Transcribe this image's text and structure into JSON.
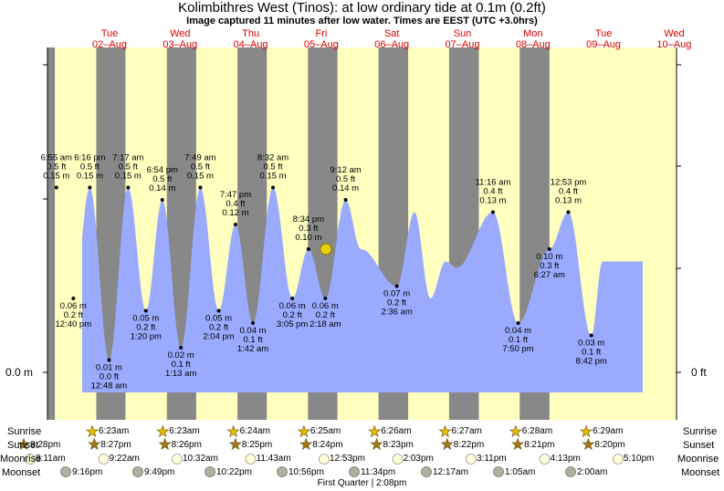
{
  "header": {
    "title": "Kolimbithres West (Tinos): at low  ordinary tide at 0.1m (0.2ft)",
    "subtitle": "Image captured 11 minutes after low water. Times are EEST (UTC +3.0hrs)"
  },
  "colors": {
    "day": "#ffffc0",
    "night": "#888888",
    "water": "#9aaaff",
    "dayname": "#e00000"
  },
  "chart_data": {
    "type": "area",
    "title": "Kolimbithres West (Tinos): at low  ordinary tide at 0.1m (0.2ft)",
    "x_unit": "hours from 2-Aug 00:00 EEST",
    "xlim": [
      -12.2,
      192.5
    ],
    "ylim_m": [
      -0.055,
      0.228
    ],
    "y_ticks_left": [
      {
        "value": 0.0,
        "label": "0.0 m"
      }
    ],
    "y_ticks_right": [
      {
        "value": 0.0,
        "label": "0 ft"
      }
    ],
    "days": [
      {
        "name": "Tue",
        "date": "02–Aug"
      },
      {
        "name": "Wed",
        "date": "03–Aug"
      },
      {
        "name": "Thu",
        "date": "04–Aug"
      },
      {
        "name": "Fri",
        "date": "05–Aug"
      },
      {
        "name": "Sat",
        "date": "06–Aug"
      },
      {
        "name": "Sun",
        "date": "07–Aug"
      },
      {
        "name": "Mon",
        "date": "08–Aug"
      },
      {
        "name": "Tue",
        "date": "09–Aug"
      },
      {
        "name": "Wed",
        "date": "10–Aug"
      }
    ],
    "tides": [
      {
        "t": 6.92,
        "m": 0.15,
        "labels": [
          "6:55 am",
          "0.5 ft",
          "0.15 m"
        ],
        "pos": "above"
      },
      {
        "t": 12.67,
        "m": 0.06,
        "labels": [
          "0.06 m",
          "0.2 ft",
          "12:40 pm"
        ],
        "pos": "below"
      },
      {
        "t": 18.27,
        "m": 0.15,
        "labels": [
          "6:16 pm",
          "0.5 ft",
          "0.15 m"
        ],
        "pos": "above"
      },
      {
        "t": 24.8,
        "m": 0.01,
        "labels": [
          "0.01 m",
          "0.0 ft",
          "12:48 am"
        ],
        "pos": "below"
      },
      {
        "t": 31.28,
        "m": 0.15,
        "labels": [
          "7:17 am",
          "0.5 ft",
          "0.15 m"
        ],
        "pos": "above"
      },
      {
        "t": 37.33,
        "m": 0.05,
        "labels": [
          "0.05 m",
          "0.2 ft",
          "1:20 pm"
        ],
        "pos": "below"
      },
      {
        "t": 42.9,
        "m": 0.14,
        "labels": [
          "6:54 pm",
          "0.5 ft",
          "0.14 m"
        ],
        "pos": "above"
      },
      {
        "t": 49.22,
        "m": 0.02,
        "labels": [
          "0.02 m",
          "0.1 ft",
          "1:13 am"
        ],
        "pos": "below"
      },
      {
        "t": 55.82,
        "m": 0.15,
        "labels": [
          "7:49 am",
          "0.5 ft",
          "0.15 m"
        ],
        "pos": "above"
      },
      {
        "t": 62.07,
        "m": 0.05,
        "labels": [
          "0.05 m",
          "0.2 ft",
          "2:04 pm"
        ],
        "pos": "below"
      },
      {
        "t": 67.78,
        "m": 0.12,
        "labels": [
          "7:47 pm",
          "0.4 ft",
          "0.12 m"
        ],
        "pos": "above"
      },
      {
        "t": 73.7,
        "m": 0.04,
        "labels": [
          "0.04 m",
          "0.1 ft",
          "1:42 am"
        ],
        "pos": "below"
      },
      {
        "t": 80.53,
        "m": 0.15,
        "labels": [
          "8:32 am",
          "0.5 ft",
          "0.15 m"
        ],
        "pos": "above"
      },
      {
        "t": 87.08,
        "m": 0.06,
        "labels": [
          "0.06 m",
          "0.2 ft",
          "3:05 pm"
        ],
        "pos": "below"
      },
      {
        "t": 92.57,
        "m": 0.1,
        "labels": [
          "8:34 pm",
          "0.3 ft",
          "0.10 m"
        ],
        "pos": "above"
      },
      {
        "t": 98.3,
        "m": 0.06,
        "labels": [
          "0.06 m",
          "0.2 ft",
          "2:18 am"
        ],
        "pos": "below"
      },
      {
        "t": 105.2,
        "m": 0.14,
        "labels": [
          "9:12 am",
          "0.5 ft",
          "0.14 m"
        ],
        "pos": "above"
      },
      {
        "t": 110.4,
        "m": 0.1,
        "labels": [],
        "pos": "none"
      },
      {
        "t": 122.6,
        "m": 0.07,
        "labels": [
          "0.07 m",
          "0.2 ft",
          "2:36 am"
        ],
        "pos": "below"
      },
      {
        "t": 128.6,
        "m": 0.13,
        "labels": [],
        "pos": "none"
      },
      {
        "t": 134.0,
        "m": 0.06,
        "labels": [],
        "pos": "none"
      },
      {
        "t": 139.2,
        "m": 0.09,
        "labels": [],
        "pos": "none"
      },
      {
        "t": 143.0,
        "m": 0.085,
        "labels": [],
        "pos": "none"
      },
      {
        "t": 155.27,
        "m": 0.13,
        "labels": [
          "11:16 am",
          "0.4 ft",
          "0.13 m"
        ],
        "pos": "above"
      },
      {
        "t": 163.83,
        "m": 0.04,
        "labels": [
          "0.04 m",
          "0.1 ft",
          "7:50 pm"
        ],
        "pos": "below"
      },
      {
        "t": 174.45,
        "m": 0.1,
        "labels": [
          "0.10 m",
          "0.3 ft",
          "6:27 am"
        ],
        "pos": "below"
      },
      {
        "t": 180.88,
        "m": 0.13,
        "labels": [
          "12:53 pm",
          "0.4 ft",
          "0.13 m"
        ],
        "pos": "above"
      },
      {
        "t": 188.7,
        "m": 0.03,
        "labels": [
          "0.03 m",
          "0.1 ft",
          "8:42 pm"
        ],
        "pos": "below"
      },
      {
        "t": 192.5,
        "m": 0.09,
        "labels": [],
        "pos": "none"
      }
    ],
    "current": {
      "t": 98.48,
      "m": 0.1
    },
    "night_intervals": [
      [
        -1.9,
        6.38
      ],
      [
        20.47,
        30.38
      ],
      [
        44.45,
        54.4
      ],
      [
        68.43,
        78.42
      ],
      [
        92.4,
        102.43
      ],
      [
        116.38,
        126.45
      ],
      [
        140.37,
        150.47
      ],
      [
        164.35,
        174.48
      ]
    ]
  },
  "rows": {
    "sunrise": {
      "label": "Sunrise",
      "values": [
        "6:23am",
        "6:23am",
        "6:24am",
        "6:25am",
        "6:26am",
        "6:27am",
        "6:28am",
        "6:29am"
      ]
    },
    "sunset": {
      "label": "Sunset",
      "values": [
        "8:28pm",
        "8:27pm",
        "8:26pm",
        "8:25pm",
        "8:24pm",
        "8:23pm",
        "8:22pm",
        "8:21pm",
        "8:20pm"
      ]
    },
    "moonrise": {
      "label": "Moonrise",
      "values": [
        "8:11am",
        "9:22am",
        "10:32am",
        "11:43am",
        "12:53pm",
        "2:03pm",
        "3:11pm",
        "4:13pm",
        "5:10pm"
      ]
    },
    "moonset": {
      "label": "Moonset",
      "values": [
        "9:16pm",
        "9:49pm",
        "10:22pm",
        "10:56pm",
        "11:34pm",
        "12:17am",
        "1:05am",
        "2:00am"
      ]
    },
    "moon_phase": "First Quarter | 2:08pm"
  }
}
